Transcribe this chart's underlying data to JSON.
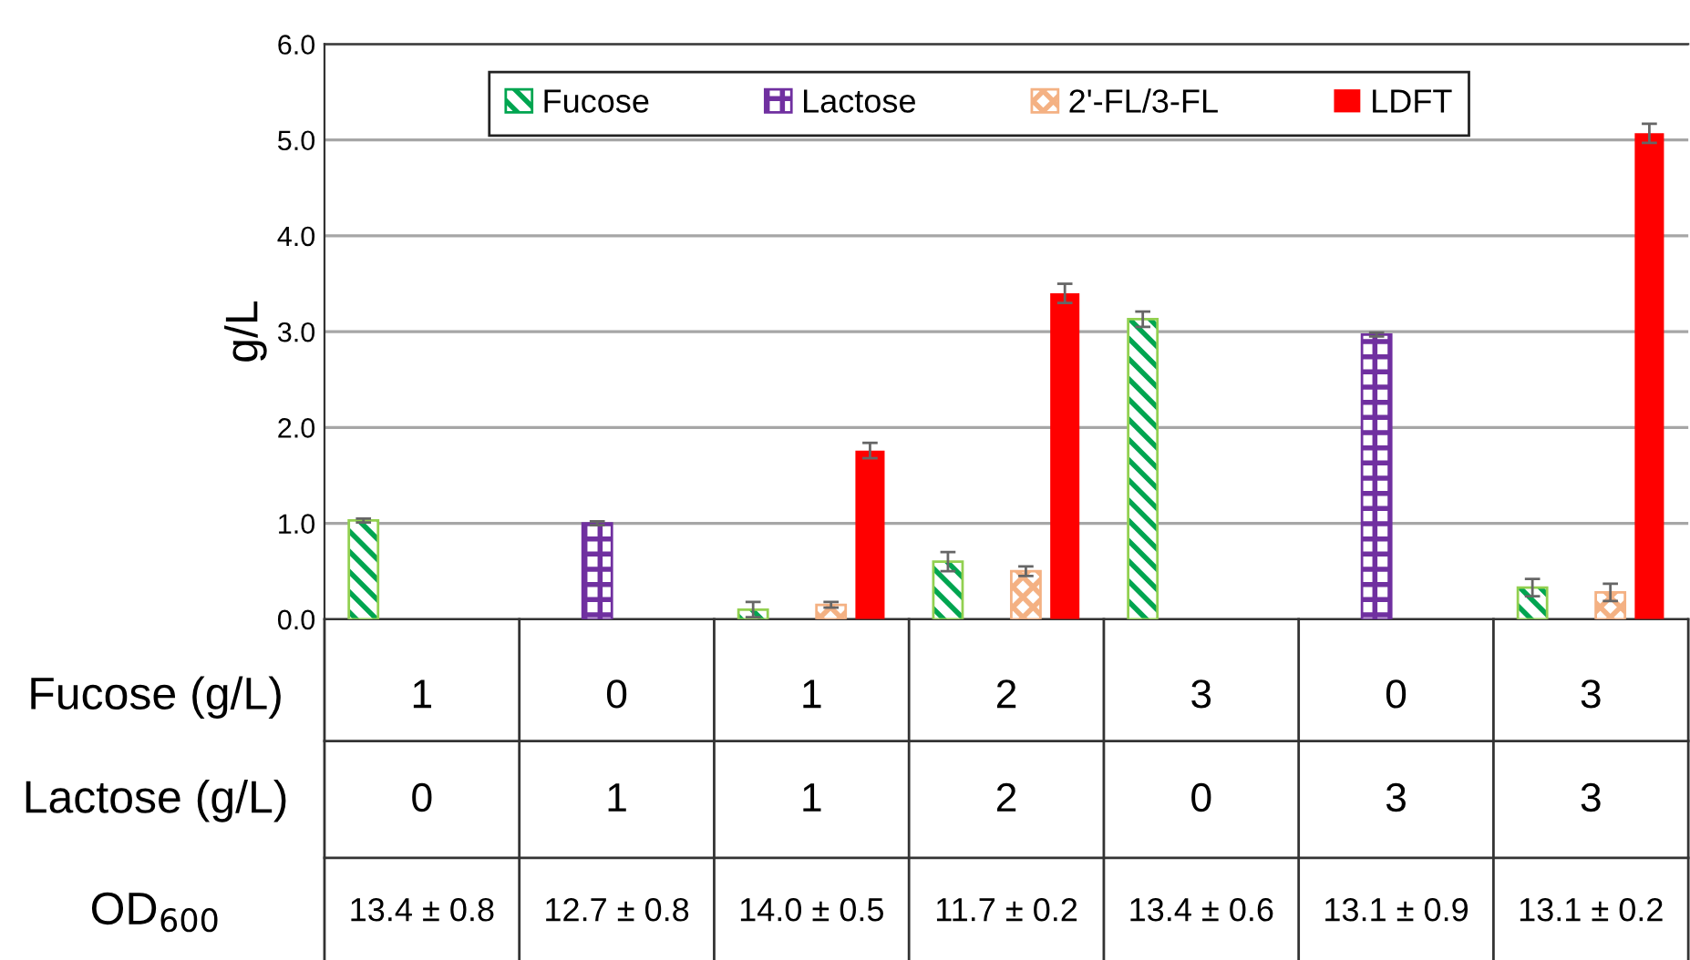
{
  "chart_data": {
    "type": "bar",
    "ylabel": "g/L",
    "categories": [
      "1\n0\n13.4 ± 0.8",
      "0\n1\n12.7 ± 0.8",
      "1\n1\n14.0 ± 0.5",
      "2\n2\n11.7 ± 0.2",
      "3\n0\n13.4 ± 0.6",
      "0\n3\n13.1 ± 0.9",
      "3\n3\n13.1 ± 0.2"
    ],
    "series": [
      {
        "name": "Fucose",
        "color": "#00a550",
        "values": [
          1.03,
          null,
          0.1,
          0.6,
          3.13,
          null,
          0.33
        ],
        "errors": [
          0.02,
          null,
          0.08,
          0.1,
          0.08,
          null,
          0.09
        ]
      },
      {
        "name": "Lactose",
        "color": "#7030a0",
        "values": [
          null,
          1.0,
          null,
          null,
          null,
          2.97,
          null
        ],
        "errors": [
          null,
          0.02,
          null,
          null,
          null,
          0.02,
          null
        ]
      },
      {
        "name": "2'-FL/3-FL",
        "color": "#f4b183",
        "values": [
          null,
          null,
          0.15,
          0.5,
          null,
          null,
          0.28
        ],
        "errors": [
          null,
          null,
          0.03,
          0.05,
          null,
          null,
          0.09
        ]
      },
      {
        "name": "LDFT",
        "color": "#ff0000",
        "values": [
          null,
          null,
          1.76,
          3.4,
          null,
          null,
          5.07
        ],
        "errors": [
          null,
          null,
          0.08,
          0.1,
          null,
          null,
          0.1
        ]
      }
    ],
    "ylim": [
      0,
      6
    ],
    "yticks": [
      {
        "value": 0,
        "label": "0.0"
      },
      {
        "value": 1,
        "label": "1.0"
      },
      {
        "value": 2,
        "label": "2.0"
      },
      {
        "value": 3,
        "label": "3.0"
      },
      {
        "value": 4,
        "label": "4.0"
      },
      {
        "value": 5,
        "label": "5.0"
      },
      {
        "value": 6,
        "label": "6.0"
      }
    ],
    "grid": "y",
    "legend": "top",
    "annotations": [
      "Fucose (g/L)",
      "Lactose (g/L)",
      "OD$_{600}$"
    ]
  }
}
